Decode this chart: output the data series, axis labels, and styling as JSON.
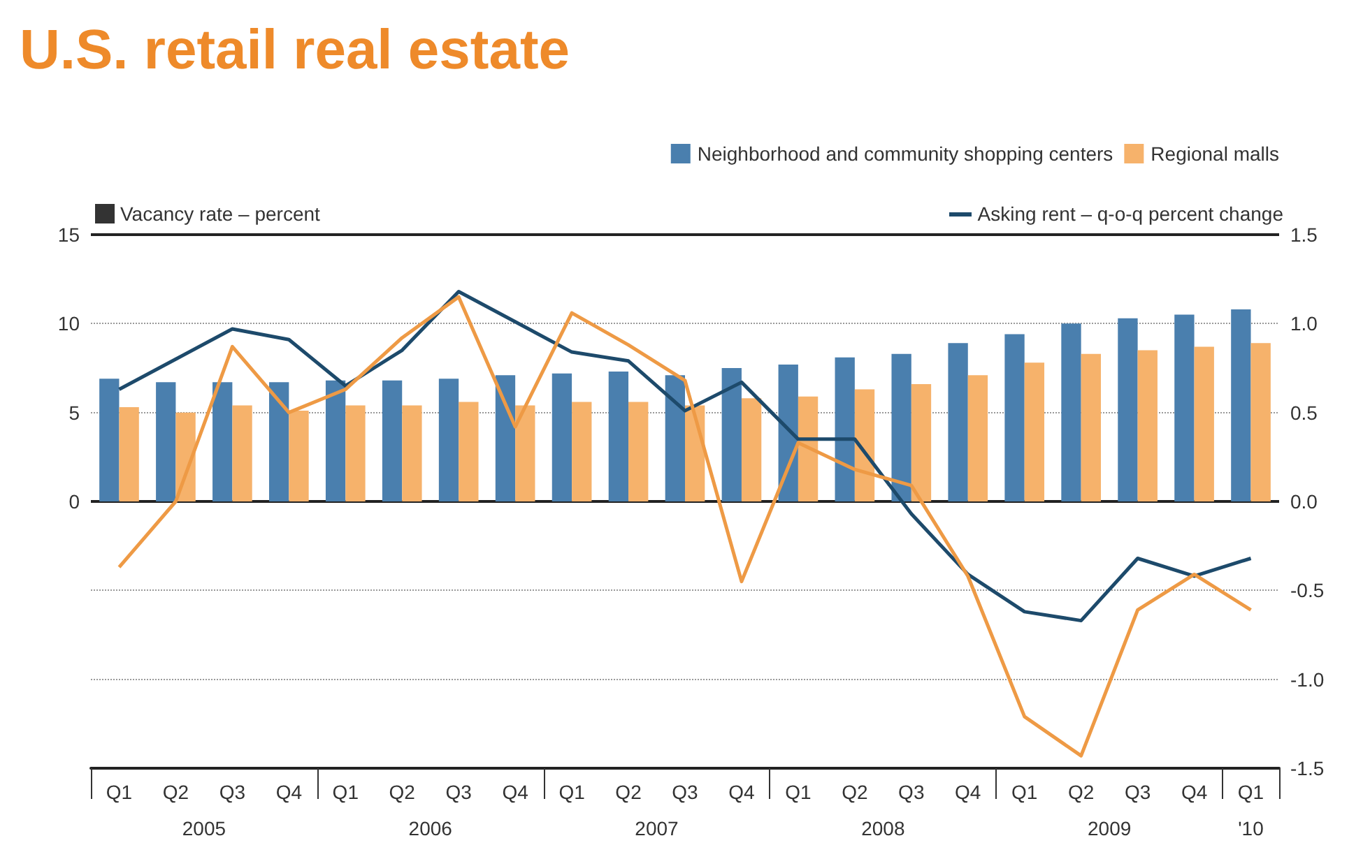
{
  "chart_data": {
    "type": "bar",
    "title": "U.S. retail real estate",
    "ylabel": "Vacancy rate – percent",
    "y2label": "Asking rent – q-o-q percent change",
    "categories": [
      "Q1",
      "Q2",
      "Q3",
      "Q4",
      "Q1",
      "Q2",
      "Q3",
      "Q4",
      "Q1",
      "Q2",
      "Q3",
      "Q4",
      "Q1",
      "Q2",
      "Q3",
      "Q4",
      "Q1",
      "Q2",
      "Q3",
      "Q4",
      "Q1"
    ],
    "series": [
      {
        "name": "Neighborhood and community shopping centers",
        "color": "#4a7fae",
        "values": [
          6.9,
          6.7,
          6.7,
          6.7,
          6.8,
          6.8,
          6.9,
          7.1,
          7.2,
          7.3,
          7.1,
          7.5,
          7.7,
          8.1,
          8.3,
          8.9,
          9.4,
          10.0,
          10.3,
          10.5,
          10.8
        ]
      },
      {
        "name": "Regional malls",
        "color": "#f6b26b",
        "values": [
          5.3,
          5.0,
          5.4,
          5.1,
          5.4,
          5.4,
          5.6,
          5.4,
          5.6,
          5.6,
          5.4,
          5.8,
          5.9,
          6.3,
          6.6,
          7.1,
          7.8,
          8.3,
          8.5,
          8.7,
          8.9
        ]
      },
      {
        "type": "line",
        "axis": "y2",
        "color": "#1d4a6b",
        "values": [
          0.63,
          0.8,
          0.97,
          0.91,
          0.65,
          0.85,
          1.18,
          1.01,
          0.84,
          0.79,
          0.51,
          0.67,
          0.35,
          0.35,
          -0.07,
          -0.41,
          -0.62,
          -0.67,
          -0.32,
          -0.42,
          -0.32
        ]
      },
      {
        "type": "line",
        "axis": "y2",
        "color": "#ee9a45",
        "values": [
          -0.37,
          0.0,
          0.87,
          0.5,
          0.63,
          0.92,
          1.15,
          0.42,
          1.06,
          0.88,
          0.68,
          -0.45,
          0.33,
          0.18,
          0.09,
          -0.42,
          -1.21,
          -1.43,
          -0.61,
          -0.41,
          -0.61
        ]
      }
    ],
    "ylim": [
      -15,
      15
    ],
    "yticks": [
      0,
      5,
      10,
      15
    ],
    "y2lim": [
      -1.5,
      1.5
    ],
    "y2ticks": [
      -1.5,
      {
        "value": -1,
        "label": "-1.0"
      },
      -0.5,
      {
        "value": 0,
        "label": "0.0"
      },
      0.5,
      {
        "value": 1,
        "label": "1.0"
      },
      1.5
    ],
    "grid": "y",
    "legend": "top right",
    "line_style": "solid",
    "marker": "none",
    "annotations": [
      "2005",
      "2006",
      "2007",
      "2008",
      "2009",
      "'10"
    ]
  }
}
